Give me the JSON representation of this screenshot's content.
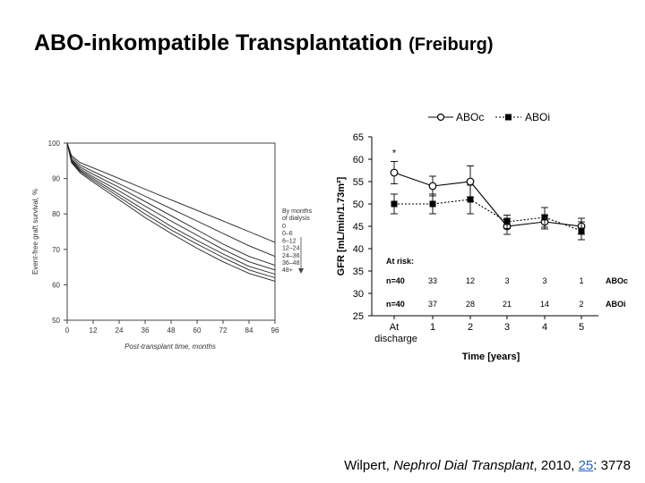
{
  "slide": {
    "title_main": "ABO-inkompatible Transplantation",
    "title_sub": "(Freiburg)"
  },
  "citation": {
    "authors": "Wilpert,",
    "journal": "Nephrol Dial Transplant",
    "year": ", 2010,",
    "volume": "25",
    "pages": ": 3778"
  },
  "chart_data": [
    {
      "type": "line",
      "xlabel": "Post-transplant time, months",
      "ylabel": "Event-free graft survival, %",
      "xlim": [
        0,
        96
      ],
      "ylim": [
        50,
        100
      ],
      "xticks": [
        "0",
        "12",
        "24",
        "36",
        "48",
        "60",
        "72",
        "84",
        "96"
      ],
      "yticks": [
        "50",
        "60",
        "70",
        "80",
        "90",
        "100"
      ],
      "legend_title": [
        "By months",
        "of dialysis"
      ],
      "legend_position": "right",
      "x": [
        0,
        2,
        6,
        12,
        24,
        36,
        48,
        60,
        72,
        84,
        96
      ],
      "series": [
        {
          "name": "0",
          "values": [
            100,
            96.5,
            94.5,
            93,
            90,
            87,
            84,
            81,
            78,
            75,
            72
          ]
        },
        {
          "name": "0–6",
          "values": [
            100,
            96,
            93.8,
            92,
            88.5,
            85,
            81.5,
            78,
            74.5,
            71,
            68
          ]
        },
        {
          "name": "6–12",
          "values": [
            100,
            95.5,
            93.2,
            91.2,
            87.5,
            83.5,
            79.5,
            75.5,
            71.5,
            68,
            65.5
          ]
        },
        {
          "name": "12–24",
          "values": [
            100,
            95.2,
            92.7,
            90.5,
            86.5,
            82.2,
            78,
            74,
            70,
            66.5,
            64.2
          ]
        },
        {
          "name": "24–36",
          "values": [
            100,
            95,
            92.3,
            90,
            85.5,
            81,
            76.5,
            72.5,
            68.7,
            65.2,
            63
          ]
        },
        {
          "name": "36–48",
          "values": [
            100,
            94.8,
            92,
            89.5,
            84.8,
            80,
            75.5,
            71.5,
            67.7,
            64.2,
            62
          ]
        },
        {
          "name": "48+",
          "values": [
            100,
            94.5,
            91.6,
            89,
            84,
            79,
            74.5,
            70.3,
            66.5,
            63.2,
            61
          ]
        }
      ]
    },
    {
      "type": "line",
      "xlabel": "Time [years]",
      "ylabel": "GFR [mL/min/1.73m²]",
      "ylim": [
        25,
        65
      ],
      "yticks": [
        "25",
        "30",
        "35",
        "40",
        "45",
        "50",
        "55",
        "60",
        "65"
      ],
      "categories": [
        "At discharge",
        "1",
        "2",
        "3",
        "4",
        "5"
      ],
      "cat_lines": [
        [
          "At",
          "discharge"
        ],
        [
          "1"
        ],
        [
          "2"
        ],
        [
          "3"
        ],
        [
          "4"
        ],
        [
          "5"
        ]
      ],
      "asterisk": "*",
      "series": [
        {
          "name": "ABOc",
          "values": [
            57,
            54,
            55,
            45,
            46,
            45
          ],
          "error": [
            2.5,
            2.2,
            3.5,
            1.8,
            1.6,
            1.8
          ]
        },
        {
          "name": "ABOi",
          "values": [
            50,
            50,
            51,
            46,
            47,
            44
          ],
          "error": [
            2.2,
            2.2,
            3.2,
            1.5,
            2.2,
            2
          ]
        }
      ],
      "at_risk": {
        "label": "At risk:",
        "rows": [
          {
            "n_label": "n=40",
            "counts": [
              "33",
              "12",
              "3",
              "3",
              "1"
            ],
            "group": "ABOc"
          },
          {
            "n_label": "n=40",
            "counts": [
              "37",
              "28",
              "21",
              "14",
              "2"
            ],
            "group": "ABOi"
          }
        ]
      }
    }
  ]
}
